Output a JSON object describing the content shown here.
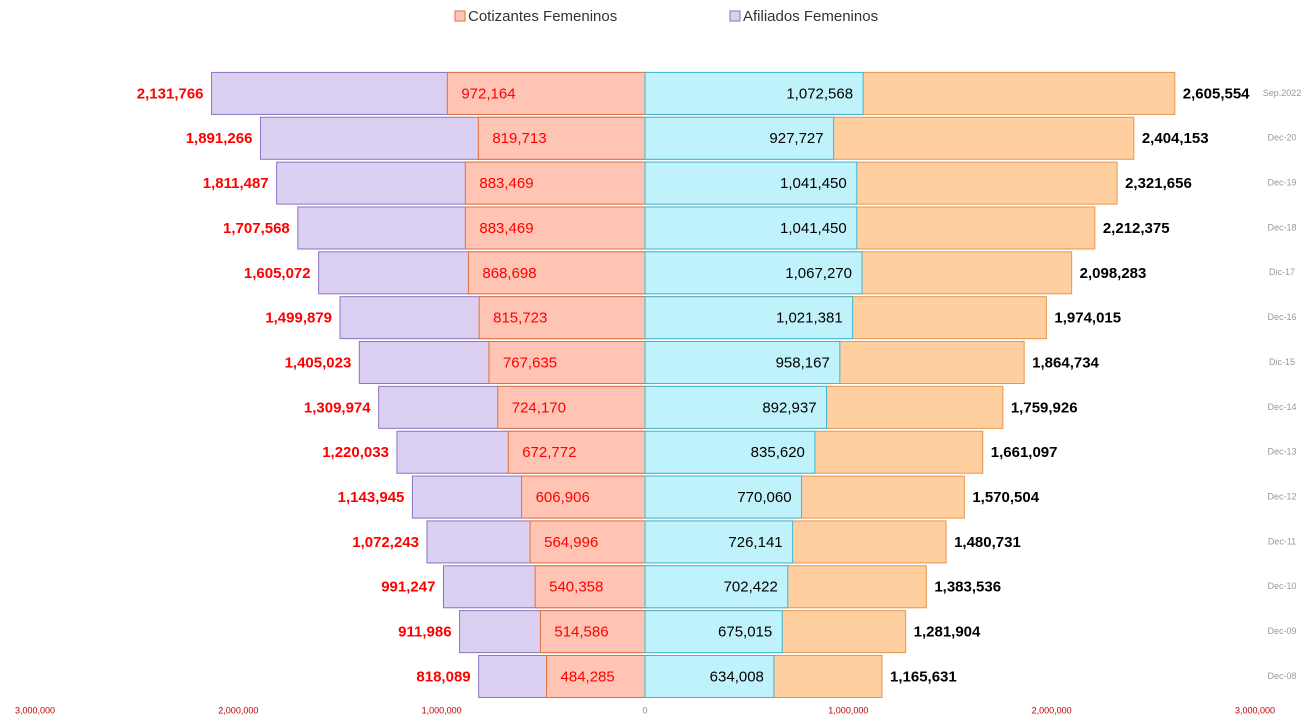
{
  "chart_data": {
    "type": "pyramid",
    "categories": [
      "Sep.2022",
      "Dec-20",
      "Dec-19",
      "Dec-18",
      "Dic-17",
      "Dec-16",
      "Dic-15",
      "Dec-14",
      "Dec-13",
      "Dec-12",
      "Dec-11",
      "Dec-10",
      "Dec-09",
      "Dec-08"
    ],
    "series": [
      {
        "name": "Cotizantes Femeninos",
        "side": "left",
        "color": "#ffc4b4",
        "stroke": "#e0703c",
        "values": [
          972164,
          819713,
          883469,
          883469,
          868698,
          815723,
          767635,
          724170,
          672772,
          606906,
          564996,
          540358,
          514586,
          484285
        ]
      },
      {
        "name": "Afiliados Femeninos",
        "side": "left",
        "color": "#dcd0f2",
        "stroke": "#8a74c2",
        "values": [
          2131766,
          1891266,
          1811487,
          1707568,
          1605072,
          1499879,
          1405023,
          1309974,
          1220033,
          1143945,
          1072243,
          991247,
          911986,
          818089
        ]
      },
      {
        "side": "right",
        "color": "#bff2fb",
        "stroke": "#3eb6d6",
        "values": [
          1072568,
          927727,
          1041450,
          1041450,
          1067270,
          1021381,
          958167,
          892937,
          835620,
          770060,
          726141,
          702422,
          675015,
          634008
        ]
      },
      {
        "side": "right",
        "color": "#ffcf9f",
        "stroke": "#e6964c",
        "values": [
          2605554,
          2404153,
          2321656,
          2212375,
          2098283,
          1974015,
          1864734,
          1759926,
          1661097,
          1570504,
          1480731,
          1383536,
          1281904,
          1165631
        ]
      }
    ],
    "xlim": [
      -3000000,
      3000000
    ],
    "xticks": [
      {
        "value": -3000000,
        "label": "3,000,000"
      },
      {
        "value": -2000000,
        "label": "2,000,000"
      },
      {
        "value": -1000000,
        "label": "1,000,000"
      },
      0,
      {
        "value": 1000000,
        "label": "1,000,000"
      },
      {
        "value": 2000000,
        "label": "2,000,000"
      },
      {
        "value": 3000000,
        "label": "3,000,000"
      }
    ]
  }
}
